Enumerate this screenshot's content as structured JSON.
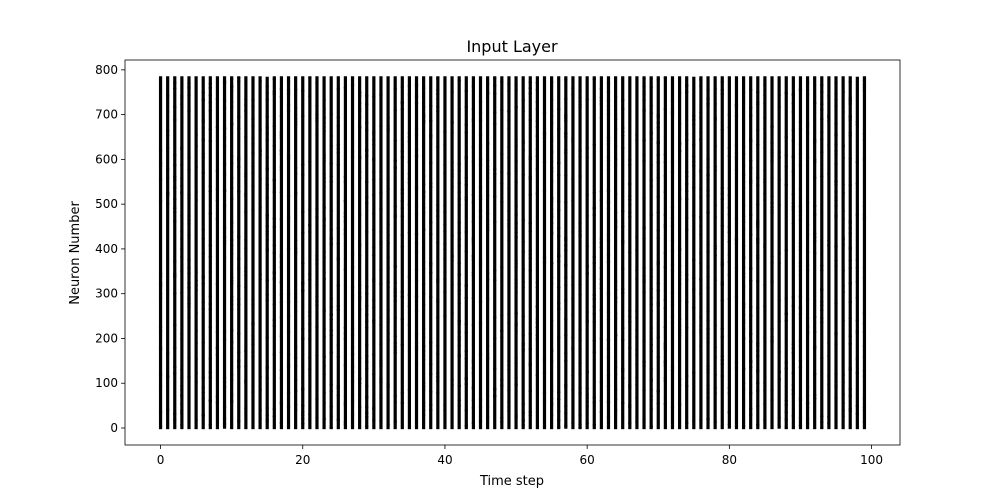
{
  "chart_data": {
    "type": "scatter",
    "title": "Input Layer",
    "xlabel": "Time step",
    "ylabel": "Neuron Number",
    "xlim": [
      -5,
      104
    ],
    "ylim": [
      -38,
      822
    ],
    "xticks": [
      0,
      20,
      40,
      60,
      80,
      100
    ],
    "yticks": [
      0,
      100,
      200,
      300,
      400,
      500,
      600,
      700,
      800
    ],
    "grid": false,
    "legend": "none",
    "marker_color": "#000000",
    "series": [
      {
        "time_steps": {
          "start": 0,
          "stop": 99,
          "step": 1
        },
        "neuron_indices": {
          "start": 0,
          "stop": 783,
          "step": 1
        },
        "spike_density": 0.97
      }
    ]
  }
}
